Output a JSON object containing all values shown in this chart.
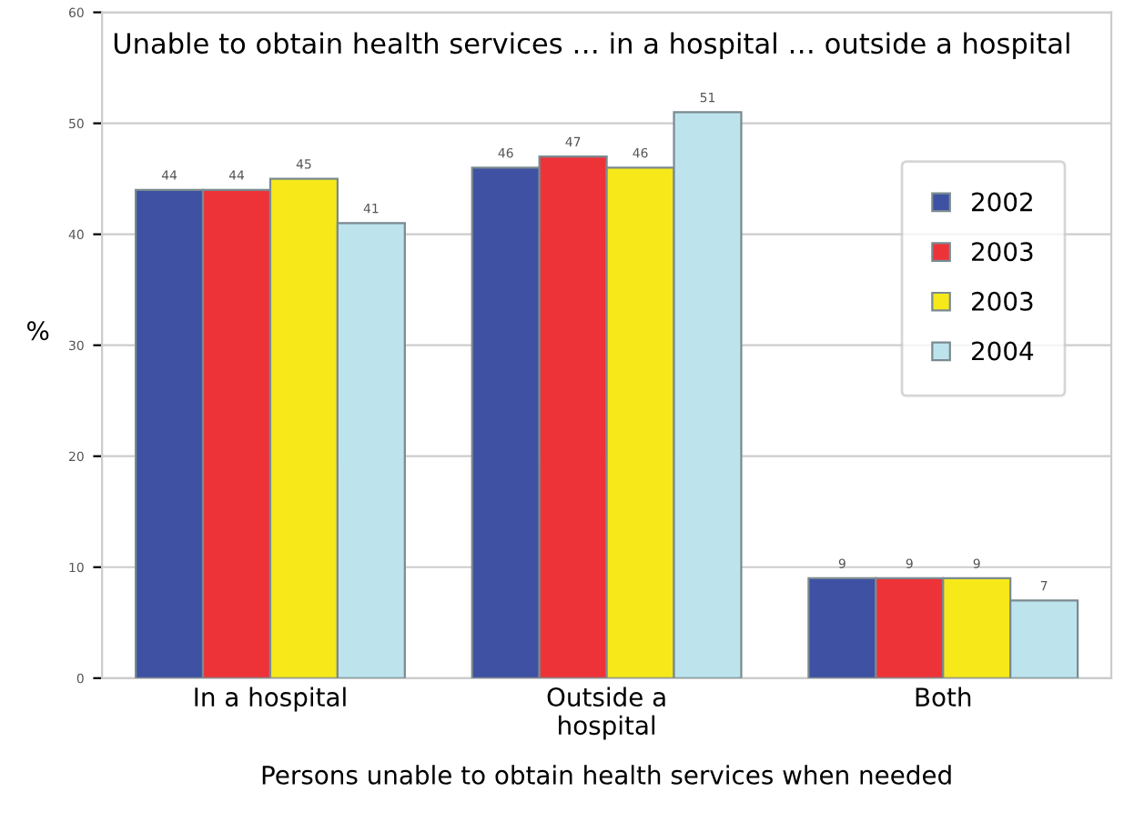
{
  "chart_data": {
    "type": "bar",
    "title": "Unable to obtain health services … in a hospital … outside a hospital",
    "xlabel": "Persons unable to obtain health services when needed",
    "ylabel": "%",
    "categories": [
      "In a hospital",
      "Outside a\nhospital",
      "Both"
    ],
    "series": [
      {
        "name": "2002",
        "color": "#3f51a3",
        "values": [
          44,
          46,
          9
        ]
      },
      {
        "name": "2003",
        "color": "#ee3338",
        "values": [
          44,
          47,
          9
        ]
      },
      {
        "name": "2003",
        "color": "#f7e81a",
        "values": [
          45,
          46,
          9
        ]
      },
      {
        "name": "2004",
        "color": "#bde4ec",
        "values": [
          41,
          51,
          7
        ]
      }
    ],
    "ylim": [
      0,
      60
    ],
    "yticks": [
      0,
      10,
      20,
      30,
      40,
      50,
      60
    ],
    "grid": "y",
    "legend": "right",
    "data_labels": true
  }
}
